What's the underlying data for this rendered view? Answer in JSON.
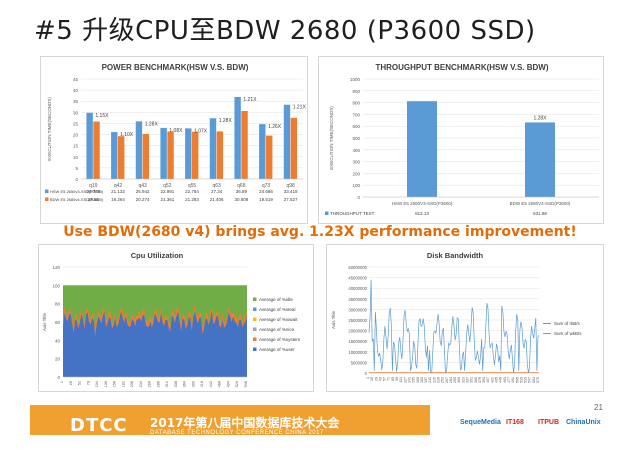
{
  "slide": {
    "title": "#5 升级CPU至BDW 2680 (P3600 SSD)",
    "banner": "Use BDW(2680 v4) brings avg. 1.23X performance improvement!",
    "page_number": "21",
    "footer": {
      "logo": "DTCC",
      "conference_title": "2017年第八届中国数据库技术大会",
      "conference_subtitle": "DATABASE TECHNOLOGY CONFERENCE CHINA 2017",
      "sponsors": [
        "SequeMedia",
        "IT168",
        "ITPUB",
        "ChinaUnix"
      ]
    }
  },
  "chart_data": [
    {
      "type": "bar",
      "title": "POWER BENCHMARK(HSW V.S. BDW)",
      "ylabel": "EXECUTION TIME(SECONDS)",
      "ylim": [
        0,
        45
      ],
      "yticks": [
        0,
        5,
        10,
        15,
        20,
        25,
        30,
        35,
        40,
        45
      ],
      "categories": [
        "q19",
        "q42",
        "q43",
        "q52",
        "q55",
        "q63",
        "q68",
        "q73",
        "q98"
      ],
      "series": [
        {
          "name": "HSW E5 2650v3-SSD(P3600)",
          "values": [
            29.788,
            21.132,
            25.942,
            22.991,
            22.784,
            27.34,
            36.89,
            24.686,
            33.418
          ],
          "color": "#5b9bd5"
        },
        {
          "name": "BDW E5 2680v4-SSD(P3600)",
          "values": [
            25.86,
            19.264,
            20.274,
            21.361,
            21.283,
            21.406,
            30.608,
            19.519,
            27.527
          ],
          "color": "#ed7d31"
        }
      ],
      "table_values": {
        "hsw": [
          "29.788",
          "21.132",
          "25.942",
          "22.991",
          "22.784",
          "27.34",
          "36.89",
          "24.686",
          "33.418"
        ],
        "bdw": [
          "25.86",
          "19.264",
          "20.274",
          "21.361",
          "21.283",
          "21.406",
          "30.608",
          "19.519",
          "27.527"
        ]
      },
      "annotations": [
        "1.15X",
        "1.10X",
        "1.28X",
        "1.08X",
        "1.07X",
        "1.28X",
        "1.21X",
        "1.26X",
        "1.21X"
      ]
    },
    {
      "type": "bar",
      "title": "THROUGHPUT BENCHMARK(HSW V.S. BDW)",
      "ylabel": "EXECUTION TIME(SECONDS)",
      "ylim": [
        0,
        1000
      ],
      "yticks": [
        0,
        100,
        200,
        300,
        400,
        500,
        600,
        700,
        800,
        900,
        1000
      ],
      "categories": [
        "HSW E5 2650V3-SSD(P3600)",
        "BDW E5 2680V4-SSD(P3600)"
      ],
      "series": [
        {
          "name": "THROUGHPUT TEST",
          "values": [
            812.13,
            631.98
          ],
          "color": "#5b9bd5"
        }
      ],
      "table_values": [
        "812.13",
        "631.98"
      ],
      "annotations": [
        "",
        "1.28X"
      ]
    },
    {
      "type": "area",
      "title": "Cpu Utilization",
      "ylabel": "Axis Title",
      "ylim": [
        0,
        120
      ],
      "yticks": [
        0,
        20,
        40,
        60,
        80,
        100,
        120
      ],
      "xticks": [
        "1",
        "26",
        "52",
        "78",
        "104",
        "130",
        "156",
        "182",
        "208",
        "234",
        "260",
        "286",
        "312",
        "338",
        "364",
        "390",
        "416",
        "442",
        "468",
        "494",
        "520",
        "546"
      ],
      "series": [
        {
          "name": "Average of %idle",
          "color": "#70ad47"
        },
        {
          "name": "Average of %steal",
          "color": "#5b9bd5"
        },
        {
          "name": "Average of %iowait",
          "color": "#ffc000"
        },
        {
          "name": "Average of %nice",
          "color": "#a5a5a5"
        },
        {
          "name": "Average of %system",
          "color": "#ed7d31"
        },
        {
          "name": "Average of %user",
          "color": "#4472c4"
        }
      ]
    },
    {
      "type": "line",
      "title": "Disk Bandwidth",
      "ylabel": "Axis Title",
      "ylim": [
        0,
        50000000
      ],
      "yticks": [
        "0",
        "5000000",
        "10000000",
        "15000000",
        "20000000",
        "25000000",
        "30000000",
        "35000000",
        "40000000",
        "45000000",
        "50000000"
      ],
      "xticks": [
        "1",
        "15",
        "29",
        "43",
        "57",
        "71",
        "85",
        "99",
        "113",
        "127",
        "141",
        "155",
        "169",
        "183",
        "197",
        "211",
        "225",
        "239",
        "253",
        "267",
        "281",
        "295",
        "309",
        "323",
        "337",
        "351",
        "365",
        "379",
        "393",
        "407",
        "421",
        "435",
        "449",
        "463",
        "477",
        "491",
        "505",
        "519",
        "533",
        "547",
        "561",
        "575"
      ],
      "series": [
        {
          "name": "Sum of rkB/s",
          "color": "#5b9bd5"
        },
        {
          "name": "Sum of wkB/s",
          "color": "#ed7d31"
        }
      ]
    }
  ]
}
